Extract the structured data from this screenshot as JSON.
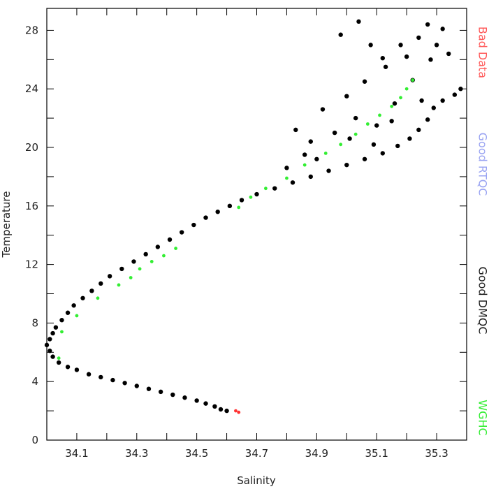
{
  "chart_data": {
    "type": "scatter",
    "xlabel": "Salinity",
    "ylabel": "Temperature",
    "xlim": [
      34.0,
      35.4
    ],
    "ylim": [
      0,
      29.5
    ],
    "x_ticks": [
      "34.1",
      "34.3",
      "34.5",
      "34.7",
      "34.9",
      "35.1",
      "35.3"
    ],
    "x_tick_values": [
      34.1,
      34.3,
      34.5,
      34.7,
      34.9,
      35.1,
      35.3
    ],
    "y_ticks": [
      "0",
      "4",
      "8",
      "12",
      "16",
      "20",
      "24",
      "28"
    ],
    "y_tick_values": [
      0,
      4,
      8,
      12,
      16,
      20,
      24,
      28
    ],
    "grid": false,
    "legend": [
      {
        "label": "Bad Data",
        "color": "#ff5a5a"
      },
      {
        "label": "Good RTQC",
        "color": "#9aa4f2"
      },
      {
        "label": "Good DMQC",
        "color": "#222222"
      },
      {
        "label": "WGHC",
        "color": "#33ee33"
      }
    ],
    "series": [
      {
        "name": "Good DMQC",
        "color": "#000000",
        "points": [
          [
            34.6,
            2.0
          ],
          [
            34.58,
            2.1
          ],
          [
            34.56,
            2.3
          ],
          [
            34.53,
            2.5
          ],
          [
            34.5,
            2.7
          ],
          [
            34.46,
            2.9
          ],
          [
            34.42,
            3.1
          ],
          [
            34.38,
            3.3
          ],
          [
            34.34,
            3.5
          ],
          [
            34.3,
            3.7
          ],
          [
            34.26,
            3.9
          ],
          [
            34.22,
            4.1
          ],
          [
            34.18,
            4.3
          ],
          [
            34.14,
            4.5
          ],
          [
            34.1,
            4.8
          ],
          [
            34.07,
            5.0
          ],
          [
            34.04,
            5.3
          ],
          [
            34.02,
            5.7
          ],
          [
            34.01,
            6.1
          ],
          [
            34.0,
            6.5
          ],
          [
            34.01,
            6.9
          ],
          [
            34.02,
            7.3
          ],
          [
            34.03,
            7.7
          ],
          [
            34.05,
            8.2
          ],
          [
            34.07,
            8.7
          ],
          [
            34.09,
            9.2
          ],
          [
            34.12,
            9.7
          ],
          [
            34.15,
            10.2
          ],
          [
            34.18,
            10.7
          ],
          [
            34.21,
            11.2
          ],
          [
            34.25,
            11.7
          ],
          [
            34.29,
            12.2
          ],
          [
            34.33,
            12.7
          ],
          [
            34.37,
            13.2
          ],
          [
            34.41,
            13.7
          ],
          [
            34.45,
            14.2
          ],
          [
            34.49,
            14.7
          ],
          [
            34.53,
            15.2
          ],
          [
            34.57,
            15.6
          ],
          [
            34.61,
            16.0
          ],
          [
            34.65,
            16.4
          ],
          [
            34.7,
            16.8
          ],
          [
            34.76,
            17.2
          ],
          [
            34.82,
            17.6
          ],
          [
            34.88,
            18.0
          ],
          [
            34.94,
            18.4
          ],
          [
            35.0,
            18.8
          ],
          [
            35.06,
            19.2
          ],
          [
            35.12,
            19.6
          ],
          [
            35.17,
            20.1
          ],
          [
            35.21,
            20.6
          ],
          [
            35.24,
            21.2
          ],
          [
            35.27,
            21.9
          ],
          [
            35.29,
            22.7
          ],
          [
            35.32,
            23.2
          ],
          [
            35.36,
            23.6
          ],
          [
            35.38,
            24.0
          ],
          [
            34.83,
            21.2
          ],
          [
            34.88,
            20.4
          ],
          [
            34.92,
            22.6
          ],
          [
            34.96,
            21.0
          ],
          [
            35.0,
            23.5
          ],
          [
            35.03,
            22.0
          ],
          [
            35.06,
            24.5
          ],
          [
            35.1,
            21.5
          ],
          [
            35.13,
            25.5
          ],
          [
            35.16,
            23.0
          ],
          [
            35.2,
            26.2
          ],
          [
            35.24,
            27.5
          ],
          [
            35.27,
            28.4
          ],
          [
            35.3,
            27.0
          ],
          [
            35.28,
            26.0
          ],
          [
            35.22,
            24.6
          ],
          [
            35.18,
            27.0
          ],
          [
            35.12,
            26.1
          ],
          [
            35.08,
            27.0
          ],
          [
            35.04,
            28.6
          ],
          [
            34.98,
            27.7
          ],
          [
            35.25,
            23.2
          ],
          [
            35.32,
            28.1
          ],
          [
            35.34,
            26.4
          ],
          [
            35.01,
            20.6
          ],
          [
            34.86,
            19.5
          ],
          [
            34.8,
            18.6
          ],
          [
            34.9,
            19.2
          ],
          [
            35.15,
            21.8
          ],
          [
            35.09,
            20.2
          ]
        ]
      },
      {
        "name": "WGHC",
        "color": "#33ee33",
        "points": [
          [
            34.04,
            5.6
          ],
          [
            34.05,
            7.4
          ],
          [
            34.1,
            8.5
          ],
          [
            34.17,
            9.7
          ],
          [
            34.24,
            10.6
          ],
          [
            34.28,
            11.1
          ],
          [
            34.31,
            11.7
          ],
          [
            34.35,
            12.2
          ],
          [
            34.39,
            12.6
          ],
          [
            34.43,
            13.1
          ],
          [
            34.64,
            15.9
          ],
          [
            34.68,
            16.6
          ],
          [
            34.73,
            17.2
          ],
          [
            34.8,
            17.9
          ],
          [
            34.86,
            18.8
          ],
          [
            34.93,
            19.6
          ],
          [
            34.98,
            20.2
          ],
          [
            35.03,
            20.9
          ],
          [
            35.07,
            21.6
          ],
          [
            35.11,
            22.2
          ],
          [
            35.15,
            22.8
          ],
          [
            35.18,
            23.4
          ],
          [
            35.2,
            24.0
          ],
          [
            35.22,
            24.6
          ]
        ]
      },
      {
        "name": "Bad Data",
        "color": "#ff3333",
        "points": [
          [
            34.63,
            2.0
          ],
          [
            34.64,
            1.9
          ]
        ]
      }
    ]
  }
}
